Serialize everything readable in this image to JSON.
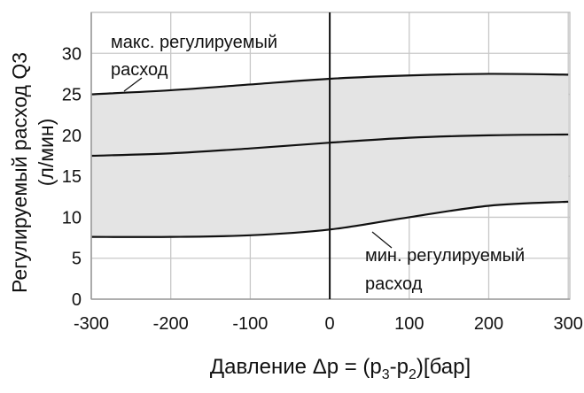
{
  "chart_data": {
    "type": "line",
    "xlabel_parts": [
      "Давление Δp = (p",
      "3",
      "-p",
      "2",
      ")[бар]"
    ],
    "ylabel": "Регулируемый расход Q3",
    "ylabel_unit": "(л/мин)",
    "xlim": [
      -300,
      302
    ],
    "ylim": [
      0,
      35
    ],
    "xticks": [
      -300,
      -200,
      -100,
      0,
      100,
      200,
      300
    ],
    "yticks": [
      0,
      5,
      10,
      15,
      20,
      25,
      30
    ],
    "grid": true,
    "x": [
      -300,
      -200,
      -100,
      0,
      100,
      200,
      300
    ],
    "series": [
      {
        "key": "max",
        "values": [
          25.0,
          25.5,
          26.2,
          26.9,
          27.3,
          27.5,
          27.4
        ]
      },
      {
        "key": "mid",
        "values": [
          17.5,
          17.8,
          18.4,
          19.1,
          19.7,
          20.0,
          20.1
        ]
      },
      {
        "key": "min",
        "values": [
          7.6,
          7.6,
          7.8,
          8.5,
          10.0,
          11.4,
          11.9
        ]
      }
    ],
    "band_fill": "#e4e4e4",
    "annotations": {
      "max": [
        "макс. регулируемый",
        "расход"
      ],
      "min": [
        "мин. регулируемый",
        "расход"
      ]
    }
  }
}
